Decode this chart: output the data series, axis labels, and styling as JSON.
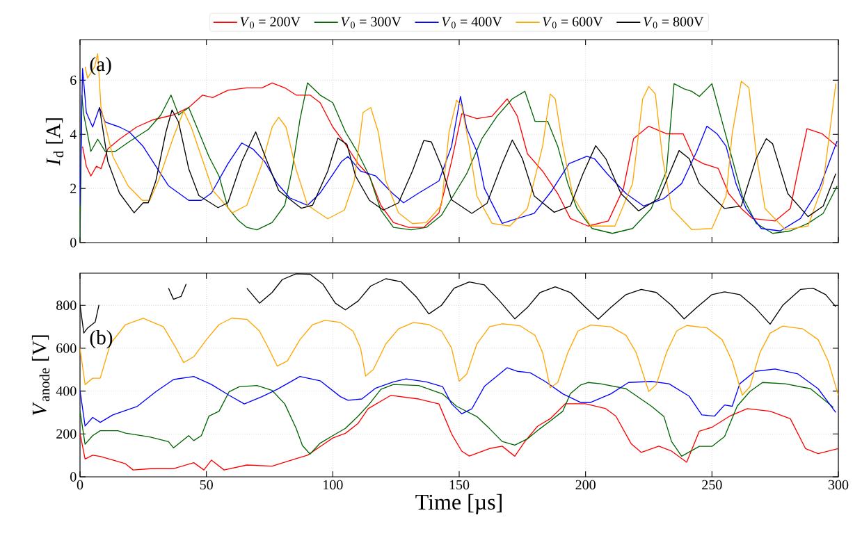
{
  "chart_data": [
    {
      "type": "line",
      "ylabel": "*I*$_{d}$ [A]",
      "annotations": [
        "(a)"
      ],
      "xlim": [
        0,
        300
      ],
      "ylim": [
        0,
        7.5
      ],
      "xticks": [
        0,
        50,
        100,
        150,
        200,
        250,
        300
      ],
      "yticks": [
        0,
        2,
        4,
        6
      ],
      "grid": true,
      "legend": "top",
      "tick_labels": "y",
      "series": [
        {
          "name": "*V*$_{0}$ = 200V",
          "color": "#ff0000",
          "x": [
            1,
            2.5,
            4.3,
            6.5,
            8.3,
            11,
            15.6,
            22.4,
            29,
            37,
            43,
            48.5,
            52.5,
            58.5,
            66,
            72,
            76,
            81,
            85.5,
            91,
            95,
            100,
            105,
            110,
            114.5,
            119,
            124,
            130,
            136,
            142,
            147,
            151,
            157,
            163,
            169,
            173,
            177,
            183,
            189,
            194,
            201,
            209,
            215,
            219,
            225,
            232,
            238.6,
            243,
            246.5,
            252.5,
            256.6,
            261.6,
            266,
            275,
            281,
            284,
            287.6,
            293.6,
            299.5
          ],
          "values": [
            3.55,
            2.82,
            2.46,
            2.82,
            2.73,
            3.46,
            3.82,
            4.27,
            4.54,
            4.72,
            4.99,
            5.45,
            5.36,
            5.63,
            5.72,
            5.72,
            5.9,
            5.72,
            5.45,
            5.45,
            5.17,
            4.27,
            3.64,
            2.91,
            2.46,
            1.38,
            0.74,
            0.56,
            0.56,
            1.1,
            3.0,
            4.76,
            4.58,
            4.67,
            5.31,
            4.67,
            3.28,
            2.64,
            1.81,
            0.89,
            0.61,
            0.8,
            2.0,
            3.84,
            4.3,
            4.02,
            4.02,
            3.1,
            2.92,
            2.74,
            1.81,
            1.26,
            0.89,
            0.8,
            1.26,
            2.64,
            4.21,
            4.02,
            3.56
          ]
        },
        {
          "name": "*V*$_{0}$ = 300V",
          "color": "#006400",
          "x": [
            0,
            0.7,
            1.5,
            4.3,
            7,
            10,
            14,
            19.5,
            27,
            32,
            36,
            39,
            43,
            47,
            51,
            55,
            58.5,
            62.5,
            66,
            70,
            76,
            81,
            84,
            87,
            90,
            95,
            100,
            105,
            109.6,
            114.5,
            119,
            124,
            131,
            137,
            143,
            147,
            153,
            159,
            165,
            171,
            176,
            180,
            185,
            189,
            193,
            196.6,
            202.6,
            210.6,
            218.6,
            226,
            232,
            235,
            239,
            242,
            245,
            250,
            254,
            258,
            262,
            267.5,
            274,
            281,
            288,
            294,
            299.5
          ],
          "values": [
            0,
            5.44,
            4.72,
            3.37,
            3.82,
            3.37,
            3.37,
            3.73,
            4.18,
            4.72,
            5.45,
            4.72,
            4.99,
            4.09,
            3.18,
            2.46,
            1.29,
            0.83,
            0.56,
            0.47,
            0.74,
            1.38,
            2.73,
            4.54,
            5.9,
            5.45,
            5.17,
            4.09,
            3.37,
            2.46,
            1.2,
            0.56,
            0.47,
            0.56,
            1.01,
            1.63,
            2.55,
            3.84,
            4.67,
            5.31,
            5.59,
            4.48,
            4.48,
            3.56,
            2.18,
            1.26,
            0.52,
            0.34,
            0.52,
            1.26,
            2.64,
            5.87,
            5.68,
            5.59,
            5.4,
            5.87,
            4.48,
            3.1,
            1.72,
            0.71,
            0.34,
            0.43,
            0.71,
            1.08,
            2.09
          ]
        },
        {
          "name": "*V*$_{0}$ = 400V",
          "color": "#0000ff",
          "x": [
            0,
            1,
            2.5,
            5,
            7.7,
            10,
            15.6,
            19.5,
            25,
            30,
            35,
            43,
            48,
            52,
            58.5,
            64,
            68.5,
            73,
            78,
            83,
            90,
            95,
            103.5,
            106,
            111,
            117,
            123.5,
            128,
            134,
            142,
            147,
            150.5,
            153,
            157,
            160,
            167,
            173,
            179.7,
            186.5,
            193.5,
            200.5,
            203.5,
            208.5,
            216,
            223,
            231,
            238,
            244,
            248,
            252,
            255.6,
            259.5,
            263.5,
            269.5,
            277,
            285,
            292.5,
            299.5
          ],
          "values": [
            1.38,
            6.43,
            4.81,
            4.27,
            4.99,
            4.45,
            4.27,
            4.09,
            3.55,
            2.82,
            2.1,
            1.56,
            1.56,
            1.83,
            2.91,
            3.68,
            3.45,
            3.0,
            2.19,
            1.65,
            1.38,
            1.83,
            3.0,
            3.18,
            2.64,
            2.46,
            1.83,
            1.47,
            1.83,
            2.28,
            3.56,
            5.4,
            4.21,
            3.37,
            2.0,
            0.71,
            0.89,
            1.08,
            1.9,
            2.92,
            3.19,
            3.1,
            2.55,
            1.81,
            1.35,
            1.63,
            2.18,
            3.37,
            4.3,
            4.02,
            3.56,
            2.18,
            1.26,
            0.52,
            0.43,
            0.89,
            2.0,
            3.75
          ]
        },
        {
          "name": "*V*$_{0}$ = 600V",
          "color": "#ffa500",
          "x": [
            2,
            3,
            5.8,
            7,
            8.3,
            13,
            19,
            24.6,
            27.6,
            31,
            37,
            41,
            44,
            48,
            52.6,
            60.3,
            66,
            72,
            76,
            78.6,
            81.5,
            85.4,
            90,
            98,
            104.6,
            108.5,
            112,
            115,
            118,
            121,
            126,
            131.5,
            137,
            143,
            146,
            149,
            151,
            154,
            157,
            163,
            170,
            177,
            183,
            186,
            188,
            191,
            195,
            202,
            211.6,
            218.6,
            222.6,
            225,
            227.6,
            230.5,
            234,
            242,
            250,
            255.6,
            258,
            261.6,
            264.6,
            267.5,
            271,
            279,
            288,
            294,
            299
          ],
          "values": [
            6.5,
            6.08,
            6.5,
            6.98,
            4.99,
            3.18,
            2.1,
            1.56,
            1.56,
            2.28,
            3.91,
            4.86,
            4.27,
            3.18,
            1.92,
            1.1,
            1.38,
            2.91,
            4.27,
            4.63,
            4.27,
            2.73,
            1.38,
            0.88,
            1.2,
            2.28,
            4.81,
            4.99,
            4.09,
            2.28,
            1.1,
            0.7,
            0.74,
            1.38,
            4.09,
            5.26,
            5.04,
            3.56,
            1.72,
            0.71,
            0.61,
            1.26,
            3.56,
            5.49,
            5.31,
            3.56,
            1.72,
            0.61,
            0.61,
            2.18,
            5.31,
            5.77,
            5.49,
            3.1,
            1.26,
            0.48,
            0.52,
            1.72,
            4.02,
            5.96,
            5.73,
            3.28,
            1.26,
            0.48,
            0.61,
            2.18,
            5.87
          ]
        },
        {
          "name": "*V*$_{0}$ = 800V",
          "color": "#000000",
          "x": [
            7.7,
            11,
            15.6,
            21.4,
            25,
            27,
            30,
            34,
            36.4,
            39,
            43,
            47,
            54.6,
            58.5,
            64,
            69.5,
            74,
            78.6,
            87.5,
            92,
            98,
            102,
            105.6,
            109,
            114.5,
            120,
            126,
            131.5,
            136,
            139,
            143,
            147,
            155,
            161,
            167,
            171,
            175,
            179.7,
            187.6,
            194,
            199,
            204,
            208,
            214,
            221,
            229,
            237,
            241,
            245,
            255,
            261.6,
            267.5,
            271.5,
            274,
            280,
            288,
            294,
            299
          ],
          "values": [
            4.99,
            3.0,
            1.83,
            1.1,
            1.47,
            1.47,
            2.28,
            4.09,
            4.9,
            4.45,
            2.73,
            1.74,
            1.29,
            1.47,
            3.0,
            4.09,
            3.0,
            1.92,
            1.27,
            1.38,
            2.64,
            3.86,
            3.63,
            2.46,
            1.56,
            1.2,
            1.47,
            2.64,
            3.77,
            3.72,
            2.82,
            1.58,
            1.08,
            1.45,
            2.92,
            3.79,
            3.1,
            1.72,
            1.12,
            1.35,
            2.55,
            3.58,
            3.1,
            1.81,
            1.17,
            1.63,
            3.4,
            3.1,
            2.18,
            1.26,
            1.35,
            3.1,
            3.84,
            3.65,
            1.81,
            0.96,
            1.35,
            2.55
          ]
        }
      ]
    },
    {
      "type": "line",
      "xlabel": "Time [µs]",
      "ylabel": "*V*$_{anode}$ [V]",
      "annotations": [
        "(b)"
      ],
      "xlim": [
        0,
        300
      ],
      "ylim": [
        0,
        950
      ],
      "xticks": [
        0,
        50,
        100,
        150,
        200,
        250,
        300
      ],
      "yticks": [
        0,
        200,
        400,
        600,
        800
      ],
      "grid": true,
      "series": [
        {
          "color": "#ff0000",
          "x": [
            0,
            2,
            5,
            8,
            13,
            18,
            21,
            28,
            37,
            45,
            49,
            52,
            57,
            66,
            76,
            85,
            90,
            95,
            100,
            105,
            110,
            114,
            123,
            134,
            142,
            147,
            151,
            154,
            162,
            167,
            172,
            176,
            181,
            186,
            192,
            200,
            208,
            212,
            218,
            222,
            229,
            234,
            240,
            245,
            250,
            257,
            264,
            273,
            281,
            287,
            292,
            300
          ],
          "values": [
            203,
            83,
            101,
            95,
            78,
            61,
            32,
            38,
            38,
            66,
            32,
            78,
            32,
            55,
            50,
            83,
            101,
            141,
            181,
            203,
            249,
            318,
            380,
            363,
            340,
            200,
            120,
            97,
            132,
            143,
            96,
            165,
            236,
            271,
            341,
            341,
            318,
            283,
            155,
            114,
            143,
            120,
            68,
            213,
            231,
            283,
            318,
            306,
            271,
            132,
            108,
            132
          ]
        },
        {
          "color": "#006400",
          "x": [
            0,
            2,
            5,
            8,
            15,
            18,
            27.6,
            35,
            37,
            43,
            45,
            48,
            51,
            55,
            59,
            63,
            70,
            76,
            81,
            85.5,
            88,
            91,
            95,
            100,
            105,
            110,
            114.5,
            119,
            124,
            134,
            143.5,
            149,
            157,
            162,
            167,
            172,
            177,
            182,
            186,
            191,
            194,
            198,
            201,
            206,
            216,
            226,
            231,
            234,
            238,
            245,
            250,
            255,
            260,
            265,
            270,
            279,
            289,
            298
          ],
          "values": [
            308,
            152,
            192,
            215,
            215,
            204,
            186,
            164,
            135,
            192,
            169,
            192,
            283,
            306,
            397,
            420,
            426,
            403,
            340,
            226,
            146,
            106,
            157,
            192,
            226,
            283,
            340,
            408,
            431,
            426,
            386,
            329,
            281,
            225,
            165,
            148,
            177,
            225,
            260,
            306,
            388,
            428,
            440,
            434,
            411,
            330,
            281,
            165,
            96,
            142,
            142,
            188,
            330,
            398,
            440,
            434,
            411,
            324
          ]
        },
        {
          "color": "#0000ff",
          "x": [
            0,
            2,
            5,
            8,
            13,
            22.7,
            30,
            37,
            45,
            52,
            59,
            65,
            72,
            78,
            87,
            95,
            103,
            106,
            111.5,
            117,
            124,
            129,
            137,
            143.5,
            147,
            151,
            155,
            160,
            169,
            173,
            178,
            184,
            191,
            198,
            202,
            210,
            217,
            226,
            233,
            241,
            246,
            251,
            255,
            258,
            261,
            267,
            275,
            284,
            292,
            299
          ],
          "values": [
            403,
            237,
            277,
            254,
            289,
            329,
            397,
            454,
            468,
            431,
            380,
            340,
            374,
            408,
            468,
            448,
            374,
            357,
            363,
            414,
            443,
            457,
            443,
            420,
            340,
            294,
            317,
            422,
            509,
            492,
            486,
            445,
            387,
            347,
            347,
            387,
            440,
            445,
            434,
            376,
            289,
            283,
            335,
            329,
            434,
            492,
            503,
            480,
            411,
            300
          ]
        },
        {
          "color": "#ffa500",
          "x": [
            0,
            2,
            5,
            8,
            12,
            18,
            25,
            33,
            38,
            41,
            45,
            50,
            55,
            60,
            66,
            71,
            75,
            78,
            82,
            87,
            92,
            97,
            103,
            108,
            111,
            113,
            116,
            121,
            126,
            132,
            138,
            143,
            147,
            150,
            153,
            157,
            162,
            167,
            174,
            180,
            183,
            186,
            189,
            193,
            197,
            202,
            210,
            216,
            220,
            225,
            228,
            232,
            236,
            240,
            248,
            254,
            258,
            262,
            265,
            269,
            273,
            278,
            286,
            292,
            296,
            300
          ],
          "values": [
            600,
            430,
            460,
            460,
            620,
            710,
            740,
            700,
            600,
            533,
            560,
            640,
            710,
            740,
            735,
            680,
            590,
            517,
            540,
            640,
            710,
            730,
            720,
            680,
            600,
            470,
            500,
            620,
            690,
            720,
            710,
            680,
            600,
            446,
            480,
            620,
            700,
            714,
            705,
            660,
            580,
            416,
            440,
            580,
            680,
            708,
            700,
            660,
            580,
            398,
            430,
            580,
            680,
            706,
            695,
            640,
            540,
            381,
            420,
            580,
            670,
            703,
            690,
            640,
            540,
            380
          ]
        },
        {
          "color": "#000000",
          "x": [
            0,
            1.5,
            3,
            6,
            7.5,
            9.5,
            20,
            32,
            35,
            37,
            40,
            42,
            43.6,
            52,
            62,
            66,
            71,
            76,
            80,
            85.5,
            91,
            96,
            101,
            105,
            110,
            115,
            121,
            127,
            133,
            138,
            143,
            148,
            154,
            160,
            166,
            172,
            177,
            182,
            188,
            194,
            200,
            205,
            210,
            216,
            222,
            228,
            234,
            239,
            244,
            250,
            255,
            261,
            267,
            273,
            278,
            285,
            290,
            295,
            299
          ],
          "values": [
            802,
            671,
            694,
            722,
            802,
            null,
            null,
            null,
            880,
            828,
            842,
            900,
            null,
            null,
            null,
            880,
            810,
            860,
            920,
            947,
            945,
            900,
            810,
            779,
            820,
            890,
            924,
            910,
            840,
            760,
            800,
            880,
            909,
            895,
            820,
            737,
            790,
            860,
            886,
            860,
            790,
            735,
            790,
            850,
            874,
            860,
            800,
            737,
            790,
            850,
            863,
            850,
            790,
            712,
            800,
            874,
            880,
            850,
            793
          ]
        }
      ]
    }
  ]
}
